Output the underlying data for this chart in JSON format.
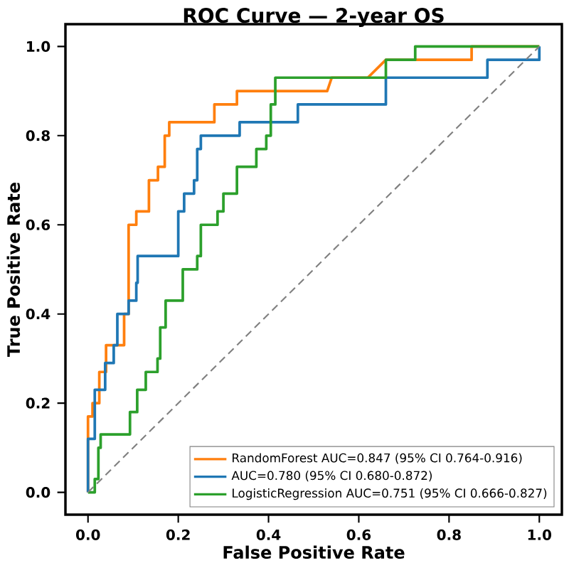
{
  "chart_data": {
    "type": "line",
    "title": "ROC Curve — 2-year OS",
    "xlabel": "False Positive Rate",
    "ylabel": "True Positive Rate",
    "xlim": [
      -0.05,
      1.05
    ],
    "ylim": [
      -0.05,
      1.05
    ],
    "xticks": [
      {
        "value": 0,
        "label": "0.0"
      },
      {
        "value": 0.2,
        "label": "0.2"
      },
      {
        "value": 0.4,
        "label": "0.4"
      },
      {
        "value": 0.6,
        "label": "0.6"
      },
      {
        "value": 0.8,
        "label": "0.8"
      },
      {
        "value": 1,
        "label": "1.0"
      }
    ],
    "yticks": [
      {
        "value": 0,
        "label": "0.0"
      },
      {
        "value": 0.2,
        "label": "0.2"
      },
      {
        "value": 0.4,
        "label": "0.4"
      },
      {
        "value": 0.6,
        "label": "0.6"
      },
      {
        "value": 0.8,
        "label": "0.8"
      },
      {
        "value": 1,
        "label": "1.0"
      }
    ],
    "legend": "bottom right",
    "marker": "none",
    "line_style": "solid",
    "grid": false,
    "series": [
      {
        "name": "RandomForest  AUC=0.847  (95% CI 0.764-0.916)",
        "color": "#ff7f0e",
        "x": [
          0,
          0,
          0.01,
          0.01,
          0.025,
          0.025,
          0.04,
          0.04,
          0.08,
          0.08,
          0.09,
          0.09,
          0.107,
          0.107,
          0.135,
          0.135,
          0.155,
          0.155,
          0.17,
          0.17,
          0.18,
          0.18,
          0.28,
          0.28,
          0.33,
          0.33,
          0.53,
          0.54,
          0.62,
          0.66,
          0.85,
          0.85,
          1.0
        ],
        "values": [
          0,
          0.17,
          0.17,
          0.2,
          0.2,
          0.27,
          0.27,
          0.33,
          0.33,
          0.4,
          0.4,
          0.6,
          0.6,
          0.63,
          0.63,
          0.7,
          0.7,
          0.73,
          0.73,
          0.8,
          0.8,
          0.83,
          0.83,
          0.87,
          0.87,
          0.9,
          0.9,
          0.93,
          0.93,
          0.97,
          0.97,
          1.0,
          1.0
        ]
      },
      {
        "name": "AUC=0.780  (95% CI 0.680-0.872)",
        "color": "#1f77b4",
        "x": [
          0,
          0,
          0.015,
          0.015,
          0.038,
          0.038,
          0.057,
          0.057,
          0.065,
          0.065,
          0.09,
          0.09,
          0.107,
          0.107,
          0.11,
          0.11,
          0.2,
          0.2,
          0.213,
          0.213,
          0.235,
          0.235,
          0.242,
          0.242,
          0.25,
          0.25,
          0.336,
          0.336,
          0.465,
          0.465,
          0.66,
          0.66,
          0.885,
          0.885,
          1.0,
          1.0
        ],
        "values": [
          0,
          0.12,
          0.12,
          0.23,
          0.23,
          0.29,
          0.29,
          0.33,
          0.33,
          0.4,
          0.4,
          0.43,
          0.43,
          0.47,
          0.47,
          0.53,
          0.53,
          0.63,
          0.63,
          0.67,
          0.67,
          0.7,
          0.7,
          0.77,
          0.77,
          0.8,
          0.8,
          0.83,
          0.83,
          0.87,
          0.87,
          0.93,
          0.93,
          0.97,
          0.97,
          1.0
        ]
      },
      {
        "name": "LogisticRegression  AUC=0.751  (95% CI 0.666-0.827)",
        "color": "#2ca02c",
        "x": [
          0,
          0.015,
          0.015,
          0.023,
          0.023,
          0.028,
          0.028,
          0.093,
          0.093,
          0.109,
          0.109,
          0.128,
          0.128,
          0.154,
          0.154,
          0.16,
          0.16,
          0.172,
          0.172,
          0.21,
          0.21,
          0.242,
          0.242,
          0.25,
          0.25,
          0.287,
          0.287,
          0.3,
          0.3,
          0.33,
          0.33,
          0.373,
          0.373,
          0.395,
          0.395,
          0.405,
          0.405,
          0.415,
          0.415,
          0.66,
          0.66,
          0.725,
          0.725,
          1.0
        ],
        "values": [
          0,
          0,
          0.03,
          0.03,
          0.1,
          0.1,
          0.13,
          0.13,
          0.18,
          0.18,
          0.23,
          0.23,
          0.27,
          0.27,
          0.3,
          0.3,
          0.37,
          0.37,
          0.43,
          0.43,
          0.5,
          0.5,
          0.53,
          0.53,
          0.6,
          0.6,
          0.63,
          0.63,
          0.67,
          0.67,
          0.73,
          0.73,
          0.77,
          0.77,
          0.8,
          0.8,
          0.87,
          0.87,
          0.93,
          0.93,
          0.97,
          0.97,
          1.0,
          1.0
        ]
      },
      {
        "color": "#808080",
        "line_style": "dashed",
        "x": [
          0,
          1
        ],
        "values": [
          0,
          1
        ]
      }
    ]
  }
}
